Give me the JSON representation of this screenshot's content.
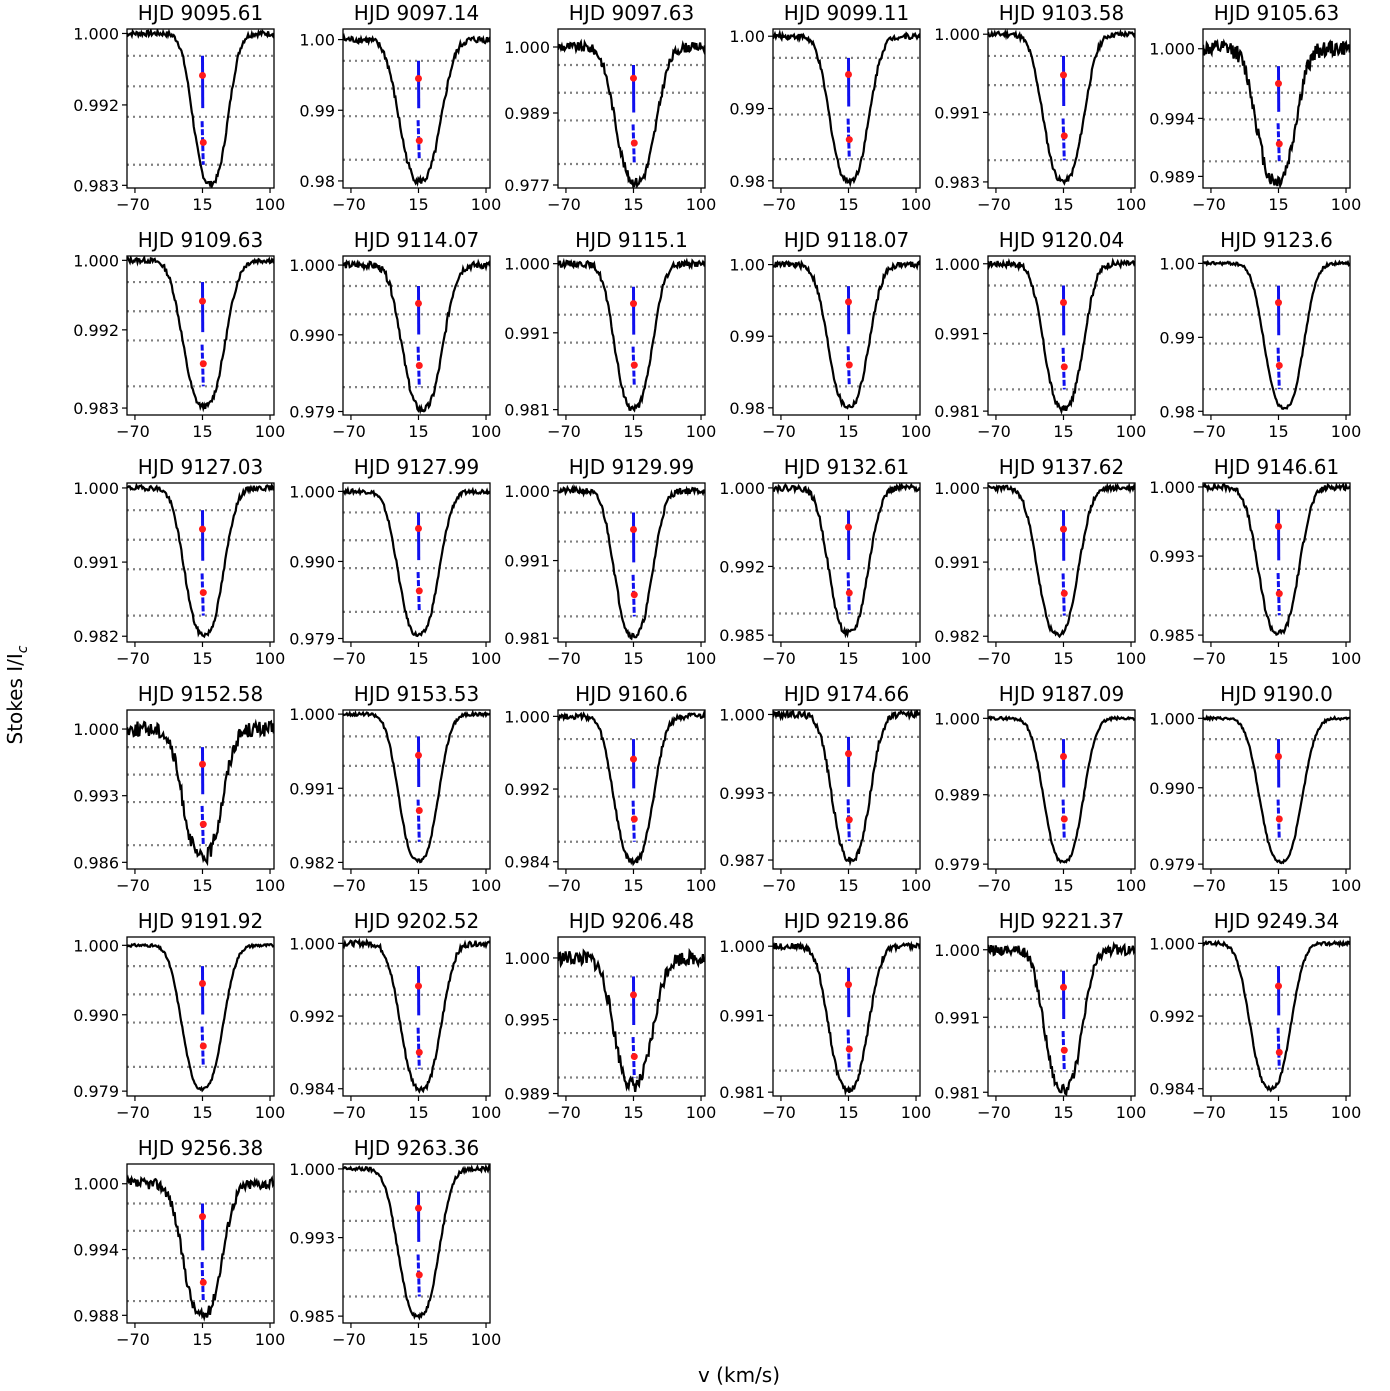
{
  "figure": {
    "ylabel": "Stokes I/I",
    "ylabel_sub": "c",
    "xlabel": "v (km/s)"
  },
  "chart_data": {
    "type": "line",
    "xticks": [
      -70,
      15,
      100
    ],
    "xlim": [
      -80,
      105
    ],
    "v_center": 15,
    "colors": {
      "profile": "#000000",
      "bisector": "#1010ee",
      "point": "#ff1a1a",
      "guide": "#808080"
    },
    "panels": [
      {
        "title": "HJD 9095.61",
        "ylim": [
          0.9827,
          1.0005
        ],
        "yticks": [
          "1.000",
          "0.992",
          "0.983"
        ],
        "ytick_values": [
          1.0,
          0.992,
          0.983
        ],
        "min": 0.9832,
        "min_v": 25,
        "fwhm": 50,
        "noise": 0.0003,
        "top": 0.9975,
        "bottom": 0.9853,
        "p1": 0.9953,
        "p2": 0.9878
      },
      {
        "title": "HJD 9097.14",
        "ylim": [
          0.979,
          1.0015
        ],
        "yticks": [
          "1.00",
          "0.99",
          "0.98"
        ],
        "ytick_values": [
          1.0,
          0.99,
          0.98
        ],
        "min": 0.98,
        "min_v": 17,
        "fwhm": 60,
        "noise": 0.0005,
        "top": 0.997,
        "bottom": 0.983,
        "p1": 0.9945,
        "p2": 0.9857
      },
      {
        "title": "HJD 9097.63",
        "ylim": [
          0.9765,
          1.003
        ],
        "yticks": [
          "1.000",
          "0.989",
          "0.977"
        ],
        "ytick_values": [
          1.0,
          0.989,
          0.977
        ],
        "min": 0.9775,
        "min_v": 18,
        "fwhm": 58,
        "noise": 0.0008,
        "top": 0.997,
        "bottom": 0.9805,
        "p1": 0.9948,
        "p2": 0.984
      },
      {
        "title": "HJD 9099.11",
        "ylim": [
          0.979,
          1.001
        ],
        "yticks": [
          "1.00",
          "0.99",
          "0.98"
        ],
        "ytick_values": [
          1.0,
          0.99,
          0.98
        ],
        "min": 0.98,
        "min_v": 16,
        "fwhm": 56,
        "noise": 0.0004,
        "top": 0.997,
        "bottom": 0.983,
        "p1": 0.9947,
        "p2": 0.9857
      },
      {
        "title": "HJD 9103.58",
        "ylim": [
          0.9823,
          1.0006
        ],
        "yticks": [
          "1.000",
          "0.991",
          "0.983"
        ],
        "ytick_values": [
          1.0,
          0.991,
          0.983
        ],
        "min": 0.9831,
        "min_v": 15,
        "fwhm": 58,
        "noise": 0.0003,
        "top": 0.9975,
        "bottom": 0.9855,
        "p1": 0.9953,
        "p2": 0.9883
      },
      {
        "title": "HJD 9105.63",
        "ylim": [
          0.988,
          1.0017
        ],
        "yticks": [
          "1.000",
          "0.994",
          "0.989"
        ],
        "ytick_values": [
          1.0,
          0.994,
          0.989
        ],
        "min": 0.9886,
        "min_v": 12,
        "fwhm": 56,
        "noise": 0.0007,
        "top": 0.9985,
        "bottom": 0.9903,
        "p1": 0.997,
        "p2": 0.9918
      },
      {
        "title": "HJD 9109.63",
        "ylim": [
          0.9822,
          1.0005
        ],
        "yticks": [
          "1.000",
          "0.992",
          "0.983"
        ],
        "ytick_values": [
          1.0,
          0.992,
          0.983
        ],
        "min": 0.9832,
        "min_v": 17,
        "fwhm": 60,
        "noise": 0.0003,
        "top": 0.9975,
        "bottom": 0.9855,
        "p1": 0.9953,
        "p2": 0.9881
      },
      {
        "title": "HJD 9114.07",
        "ylim": [
          0.9785,
          1.0013
        ],
        "yticks": [
          "1.000",
          "0.990",
          "0.979"
        ],
        "ytick_values": [
          1.0,
          0.99,
          0.979
        ],
        "min": 0.9793,
        "min_v": 20,
        "fwhm": 58,
        "noise": 0.0005,
        "top": 0.997,
        "bottom": 0.9825,
        "p1": 0.9945,
        "p2": 0.9856
      },
      {
        "title": "HJD 9115.1",
        "ylim": [
          0.9803,
          1.001
        ],
        "yticks": [
          "1.000",
          "0.991",
          "0.981"
        ],
        "ytick_values": [
          1.0,
          0.991,
          0.981
        ],
        "min": 0.9812,
        "min_v": 15,
        "fwhm": 54,
        "noise": 0.0004,
        "top": 0.997,
        "bottom": 0.984,
        "p1": 0.9948,
        "p2": 0.9868
      },
      {
        "title": "HJD 9118.07",
        "ylim": [
          0.979,
          1.0012
        ],
        "yticks": [
          "1.00",
          "0.99",
          "0.98"
        ],
        "ytick_values": [
          1.0,
          0.99,
          0.98
        ],
        "min": 0.9802,
        "min_v": 15,
        "fwhm": 58,
        "noise": 0.0004,
        "top": 0.997,
        "bottom": 0.983,
        "p1": 0.9948,
        "p2": 0.986
      },
      {
        "title": "HJD 9120.04",
        "ylim": [
          0.9805,
          1.001
        ],
        "yticks": [
          "1.000",
          "0.991",
          "0.981"
        ],
        "ytick_values": [
          1.0,
          0.991,
          0.981
        ],
        "min": 0.9813,
        "min_v": 15,
        "fwhm": 56,
        "noise": 0.0004,
        "top": 0.9972,
        "bottom": 0.9838,
        "p1": 0.995,
        "p2": 0.9867
      },
      {
        "title": "HJD 9123.6",
        "ylim": [
          0.9795,
          1.001
        ],
        "yticks": [
          "1.00",
          "0.99",
          "0.98"
        ],
        "ytick_values": [
          1.0,
          0.99,
          0.98
        ],
        "min": 0.9805,
        "min_v": 22,
        "fwhm": 56,
        "noise": 0.0002,
        "top": 0.997,
        "bottom": 0.983,
        "p1": 0.9947,
        "p2": 0.9862
      },
      {
        "title": "HJD 9127.03",
        "ylim": [
          0.9813,
          1.0006
        ],
        "yticks": [
          "1.000",
          "0.991",
          "0.982"
        ],
        "ytick_values": [
          1.0,
          0.991,
          0.982
        ],
        "min": 0.9822,
        "min_v": 17,
        "fwhm": 56,
        "noise": 0.0003,
        "top": 0.9973,
        "bottom": 0.9845,
        "p1": 0.995,
        "p2": 0.9873
      },
      {
        "title": "HJD 9127.99",
        "ylim": [
          0.9785,
          1.0012
        ],
        "yticks": [
          "1.000",
          "0.990",
          "0.979"
        ],
        "ytick_values": [
          1.0,
          0.99,
          0.979
        ],
        "min": 0.9795,
        "min_v": 15,
        "fwhm": 58,
        "noise": 0.0003,
        "top": 0.997,
        "bottom": 0.9828,
        "p1": 0.9947,
        "p2": 0.9858
      },
      {
        "title": "HJD 9129.99",
        "ylim": [
          0.9805,
          1.001
        ],
        "yticks": [
          "1.000",
          "0.991",
          "0.981"
        ],
        "ytick_values": [
          1.0,
          0.991,
          0.981
        ],
        "min": 0.9813,
        "min_v": 15,
        "fwhm": 54,
        "noise": 0.0004,
        "top": 0.9972,
        "bottom": 0.9838,
        "p1": 0.995,
        "p2": 0.9866
      },
      {
        "title": "HJD 9132.61",
        "ylim": [
          0.9843,
          1.0005
        ],
        "yticks": [
          "1.000",
          "0.992",
          "0.985"
        ],
        "ytick_values": [
          1.0,
          0.992,
          0.985
        ],
        "min": 0.9852,
        "min_v": 15,
        "fwhm": 56,
        "noise": 0.0003,
        "top": 0.9977,
        "bottom": 0.9872,
        "p1": 0.996,
        "p2": 0.9893
      },
      {
        "title": "HJD 9137.62",
        "ylim": [
          0.9813,
          1.0006
        ],
        "yticks": [
          "1.000",
          "0.991",
          "0.982"
        ],
        "ytick_values": [
          1.0,
          0.991,
          0.982
        ],
        "min": 0.9822,
        "min_v": 8,
        "fwhm": 58,
        "noise": 0.0003,
        "top": 0.9973,
        "bottom": 0.9845,
        "p1": 0.995,
        "p2": 0.9872
      },
      {
        "title": "HJD 9146.61",
        "ylim": [
          0.9843,
          1.0004
        ],
        "yticks": [
          "1.000",
          "0.993",
          "0.985"
        ],
        "ytick_values": [
          1.0,
          0.993,
          0.985
        ],
        "min": 0.9852,
        "min_v": 15,
        "fwhm": 58,
        "noise": 0.0003,
        "top": 0.9977,
        "bottom": 0.987,
        "p1": 0.996,
        "p2": 0.9892
      },
      {
        "title": "HJD 9152.58",
        "ylim": [
          0.9853,
          1.002
        ],
        "yticks": [
          "1.000",
          "0.993",
          "0.986"
        ],
        "ytick_values": [
          1.0,
          0.993,
          0.986
        ],
        "min": 0.9865,
        "min_v": 15,
        "fwhm": 56,
        "noise": 0.0008,
        "top": 0.9981,
        "bottom": 0.9878,
        "p1": 0.9963,
        "p2": 0.99
      },
      {
        "title": "HJD 9153.53",
        "ylim": [
          0.9812,
          1.0005
        ],
        "yticks": [
          "1.000",
          "0.991",
          "0.982"
        ],
        "ytick_values": [
          1.0,
          0.991,
          0.982
        ],
        "min": 0.9822,
        "min_v": 15,
        "fwhm": 56,
        "noise": 0.0002,
        "top": 0.9973,
        "bottom": 0.9845,
        "p1": 0.995,
        "p2": 0.9883
      },
      {
        "title": "HJD 9160.6",
        "ylim": [
          0.9832,
          1.0007
        ],
        "yticks": [
          "1.000",
          "0.992",
          "0.984"
        ],
        "ytick_values": [
          1.0,
          0.992,
          0.984
        ],
        "min": 0.984,
        "min_v": 15,
        "fwhm": 56,
        "noise": 0.0003,
        "top": 0.9975,
        "bottom": 0.9862,
        "p1": 0.9953,
        "p2": 0.9887
      },
      {
        "title": "HJD 9174.66",
        "ylim": [
          0.9862,
          1.0004
        ],
        "yticks": [
          "1.000",
          "0.993",
          "0.987"
        ],
        "ytick_values": [
          1.0,
          0.993,
          0.987
        ],
        "min": 0.987,
        "min_v": 18,
        "fwhm": 54,
        "noise": 0.0003,
        "top": 0.998,
        "bottom": 0.9887,
        "p1": 0.9965,
        "p2": 0.9906
      },
      {
        "title": "HJD 9187.09",
        "ylim": [
          0.9783,
          1.0012
        ],
        "yticks": [
          "1.000",
          "0.989",
          "0.979"
        ],
        "ytick_values": [
          1.0,
          0.989,
          0.979
        ],
        "min": 0.9793,
        "min_v": 15,
        "fwhm": 56,
        "noise": 0.0002,
        "top": 0.997,
        "bottom": 0.9825,
        "p1": 0.9945,
        "p2": 0.9855
      },
      {
        "title": "HJD 9190.0",
        "ylim": [
          0.9783,
          1.0012
        ],
        "yticks": [
          "1.000",
          "0.990",
          "0.979"
        ],
        "ytick_values": [
          1.0,
          0.99,
          0.979
        ],
        "min": 0.9793,
        "min_v": 18,
        "fwhm": 60,
        "noise": 0.0002,
        "top": 0.997,
        "bottom": 0.9825,
        "p1": 0.9945,
        "p2": 0.9855
      },
      {
        "title": "HJD 9191.92",
        "ylim": [
          0.9783,
          1.0012
        ],
        "yticks": [
          "1.000",
          "0.990",
          "0.979"
        ],
        "ytick_values": [
          1.0,
          0.99,
          0.979
        ],
        "min": 0.9793,
        "min_v": 15,
        "fwhm": 58,
        "noise": 0.0002,
        "top": 0.997,
        "bottom": 0.9825,
        "p1": 0.9945,
        "p2": 0.9855
      },
      {
        "title": "HJD 9202.52",
        "ylim": [
          0.9832,
          1.0007
        ],
        "yticks": [
          "1.000",
          "0.992",
          "0.984"
        ],
        "ytick_values": [
          1.0,
          0.992,
          0.984
        ],
        "min": 0.984,
        "min_v": 18,
        "fwhm": 58,
        "noise": 0.0003,
        "top": 0.9975,
        "bottom": 0.9862,
        "p1": 0.9953,
        "p2": 0.988
      },
      {
        "title": "HJD 9206.48",
        "ylim": [
          0.9888,
          1.0017
        ],
        "yticks": [
          "1.000",
          "0.995",
          "0.989"
        ],
        "ytick_values": [
          1.0,
          0.995,
          0.989
        ],
        "min": 0.9897,
        "min_v": 15,
        "fwhm": 56,
        "noise": 0.0006,
        "top": 0.9985,
        "bottom": 0.9903,
        "p1": 0.997,
        "p2": 0.992
      },
      {
        "title": "HJD 9219.86",
        "ylim": [
          0.9805,
          1.0012
        ],
        "yticks": [
          "1.000",
          "0.991",
          "0.981"
        ],
        "ytick_values": [
          1.0,
          0.991,
          0.981
        ],
        "min": 0.9813,
        "min_v": 15,
        "fwhm": 56,
        "noise": 0.0004,
        "top": 0.9972,
        "bottom": 0.9838,
        "p1": 0.995,
        "p2": 0.9866
      },
      {
        "title": "HJD 9221.37",
        "ylim": [
          0.9805,
          1.0017
        ],
        "yticks": [
          "1.000",
          "0.991",
          "0.981"
        ],
        "ytick_values": [
          1.0,
          0.991,
          0.981
        ],
        "min": 0.9813,
        "min_v": 15,
        "fwhm": 54,
        "noise": 0.0007,
        "top": 0.9972,
        "bottom": 0.9838,
        "p1": 0.995,
        "p2": 0.9866
      },
      {
        "title": "HJD 9249.34",
        "ylim": [
          0.9832,
          1.0007
        ],
        "yticks": [
          "1.000",
          "0.992",
          "0.984"
        ],
        "ytick_values": [
          1.0,
          0.992,
          0.984
        ],
        "min": 0.984,
        "min_v": 5,
        "fwhm": 58,
        "noise": 0.0002,
        "top": 0.9975,
        "bottom": 0.9862,
        "p1": 0.9953,
        "p2": 0.988
      },
      {
        "title": "HJD 9256.38",
        "ylim": [
          0.9873,
          1.0018
        ],
        "yticks": [
          "1.000",
          "0.994",
          "0.988"
        ],
        "ytick_values": [
          1.0,
          0.994,
          0.988
        ],
        "min": 0.988,
        "min_v": 15,
        "fwhm": 56,
        "noise": 0.0005,
        "top": 0.9982,
        "bottom": 0.9893,
        "p1": 0.997,
        "p2": 0.991
      },
      {
        "title": "HJD 9263.36",
        "ylim": [
          0.9843,
          1.0005
        ],
        "yticks": [
          "1.000",
          "0.993",
          "0.985"
        ],
        "ytick_values": [
          1.0,
          0.993,
          0.985
        ],
        "min": 0.985,
        "min_v": 15,
        "fwhm": 58,
        "noise": 0.0002,
        "top": 0.9977,
        "bottom": 0.987,
        "p1": 0.996,
        "p2": 0.9892
      }
    ]
  }
}
